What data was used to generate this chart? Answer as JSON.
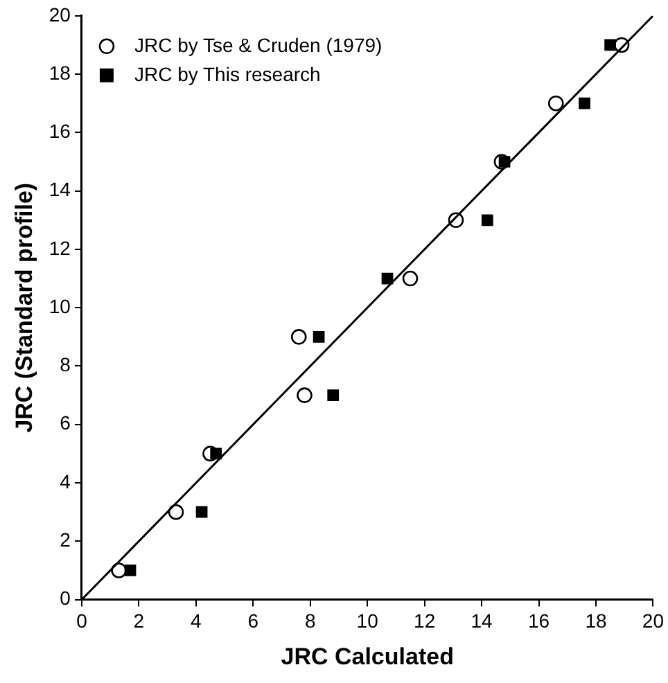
{
  "chart_data": {
    "type": "scatter",
    "xlabel": "JRC Calculated",
    "ylabel": "JRC (Standard profile)",
    "xlim": [
      0,
      20
    ],
    "ylim": [
      0,
      20
    ],
    "xticks": [
      0,
      2,
      4,
      6,
      8,
      10,
      12,
      14,
      16,
      18,
      20
    ],
    "yticks": [
      0,
      2,
      4,
      6,
      8,
      10,
      12,
      14,
      16,
      18,
      20
    ],
    "grid": false,
    "legend": "top left",
    "series": [
      {
        "name": "JRC by Tse & Cruden (1979)",
        "color": "#000000",
        "marker": "circle",
        "x": [
          1.3,
          3.3,
          4.5,
          7.6,
          7.8,
          11.5,
          13.1,
          14.7,
          16.6,
          18.9
        ],
        "values": [
          1,
          3,
          5,
          9,
          7,
          11,
          13,
          15,
          17,
          19
        ]
      },
      {
        "name": "JRC by This research",
        "color": "#000000",
        "marker": "square",
        "x": [
          1.7,
          4.2,
          4.7,
          8.3,
          8.8,
          10.7,
          14.2,
          14.8,
          17.6,
          18.5
        ],
        "values": [
          1,
          3,
          5,
          9,
          7,
          11,
          13,
          15,
          17,
          19
        ]
      },
      {
        "type": "line",
        "color": "#000000",
        "marker": "none",
        "x": [
          0,
          20
        ],
        "values": [
          0,
          20
        ]
      }
    ]
  }
}
